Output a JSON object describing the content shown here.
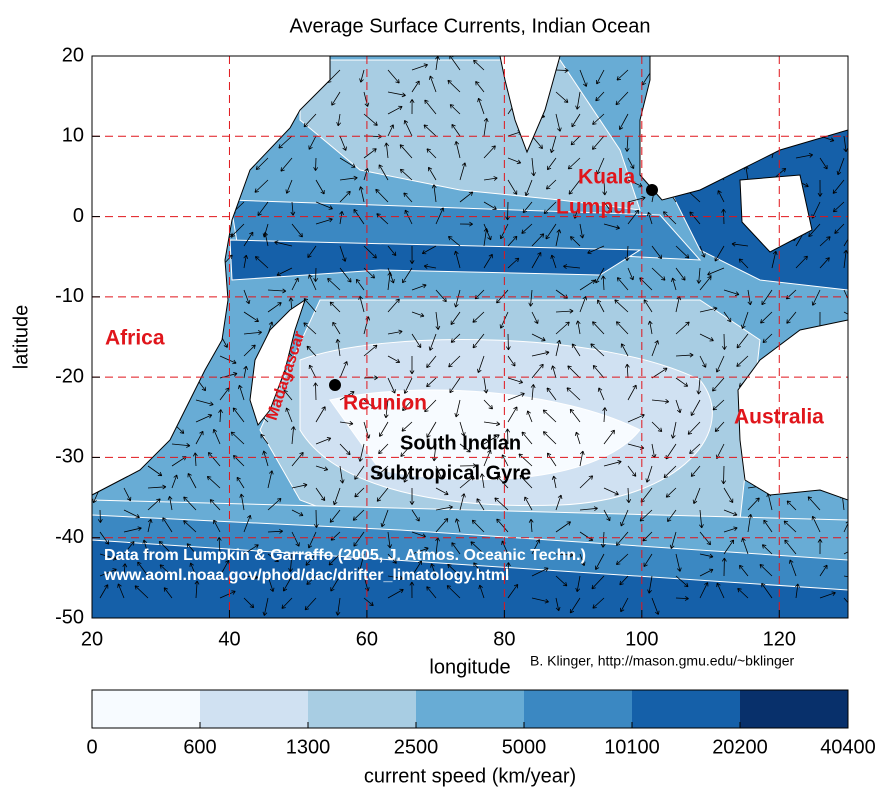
{
  "title": "Average Surface Currents, Indian Ocean",
  "map": {
    "xlabel": "longitude",
    "ylabel": "latitude",
    "xlim": [
      20,
      130
    ],
    "ylim": [
      -50,
      20
    ],
    "xticks": [
      20,
      40,
      60,
      80,
      100,
      120
    ],
    "yticks": [
      20,
      10,
      0,
      -10,
      -20,
      -30,
      -40,
      -50
    ],
    "grid": true,
    "grid_color": "#e0151b",
    "places": {
      "africa": "Africa",
      "madagascar": "Madagascar",
      "reunion": "Reunion",
      "kuala_lumpur": [
        "Kuala",
        "Lumpur"
      ],
      "australia": "Australia",
      "gyre": [
        "South Indian",
        "Subtropical Gyre"
      ]
    },
    "credits": [
      "Data from Lumpkin & Garraffo (2005, J. Atmos. Oceanic Techn.)",
      "www.aoml.noaa.gov/phod/dac/drifter_limatology.html"
    ],
    "author": "B. Klinger, http://mason.gmu.edu/~bklinger"
  },
  "colorbar": {
    "label": "current speed (km/year)",
    "ticks": [
      0,
      600,
      1300,
      2500,
      5000,
      10100,
      20200,
      40400
    ],
    "colors": [
      "#f7fbff",
      "#d0e1f2",
      "#a8cde3",
      "#68acd5",
      "#3b88c2",
      "#1560a9",
      "#08306b"
    ]
  }
}
